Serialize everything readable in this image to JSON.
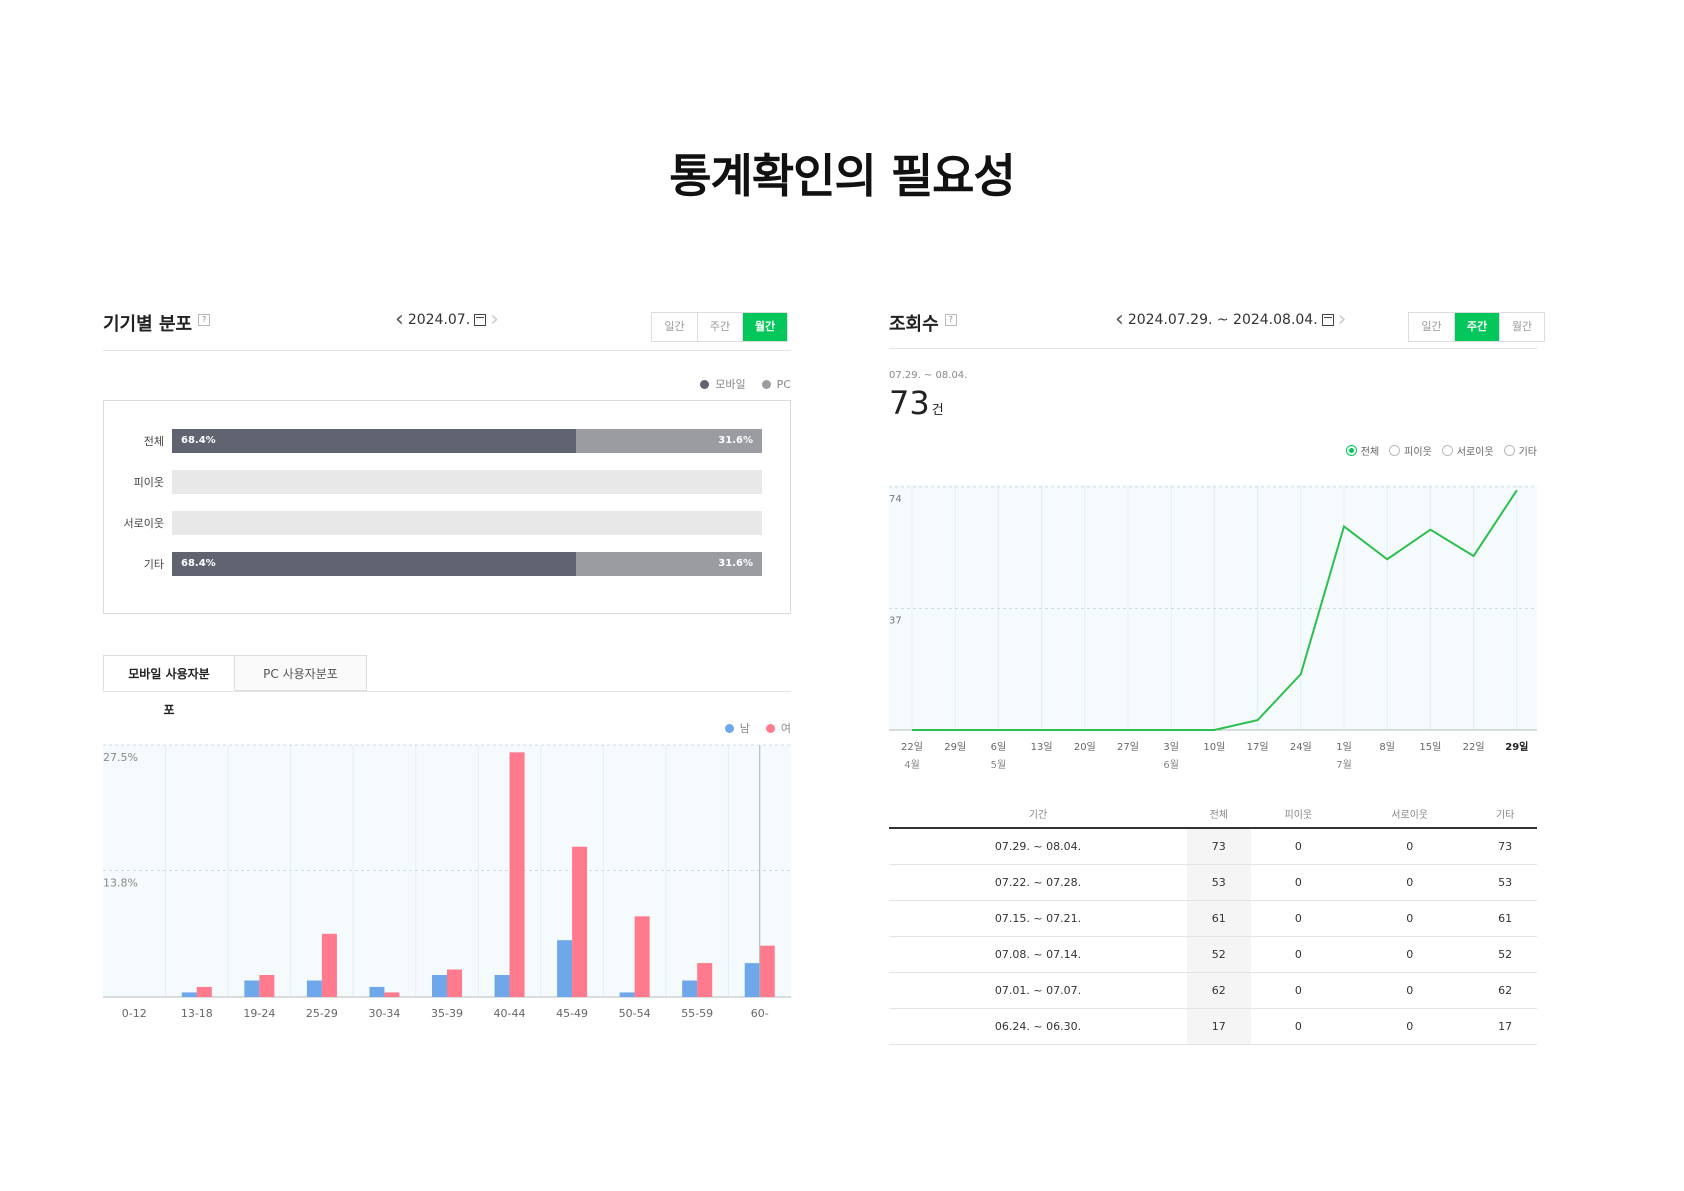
{
  "page_title": "통계확인의 필요성",
  "left": {
    "title": "기기별 분포",
    "help": "?",
    "date": "2024.07.",
    "periods": [
      {
        "label": "일간",
        "active": false
      },
      {
        "label": "주간",
        "active": false
      },
      {
        "label": "월간",
        "active": true
      }
    ],
    "legend": [
      {
        "label": "모바일",
        "color": "#606470"
      },
      {
        "label": "PC",
        "color": "#9a9ca1"
      }
    ],
    "tabs": [
      {
        "label": "모바일 사용자분포",
        "active": true
      },
      {
        "label": "PC 사용자분포",
        "active": false
      }
    ],
    "gender_legend": [
      {
        "label": "남",
        "color": "#6ea8ea"
      },
      {
        "label": "여",
        "color": "#ff7a8c"
      }
    ]
  },
  "right": {
    "title": "조회수",
    "help": "?",
    "date": "2024.07.29. ~ 2024.08.04.",
    "periods": [
      {
        "label": "일간",
        "active": false
      },
      {
        "label": "주간",
        "active": true
      },
      {
        "label": "월간",
        "active": false
      }
    ],
    "kpi_period": "07.29. ~ 08.04.",
    "kpi_value": "73",
    "kpi_unit": "건",
    "filters": [
      {
        "label": "전체",
        "on": true
      },
      {
        "label": "피이웃",
        "on": false
      },
      {
        "label": "서로이웃",
        "on": false
      },
      {
        "label": "기타",
        "on": false
      }
    ],
    "table": {
      "headers": [
        "기간",
        "전체",
        "피이웃",
        "서로이웃",
        "기타"
      ],
      "rows": [
        [
          "07.29. ~ 08.04.",
          "73",
          "0",
          "0",
          "73"
        ],
        [
          "07.22. ~ 07.28.",
          "53",
          "0",
          "0",
          "53"
        ],
        [
          "07.15. ~ 07.21.",
          "61",
          "0",
          "0",
          "61"
        ],
        [
          "07.08. ~ 07.14.",
          "52",
          "0",
          "0",
          "52"
        ],
        [
          "07.01. ~ 07.07.",
          "62",
          "0",
          "0",
          "62"
        ],
        [
          "06.24. ~ 06.30.",
          "17",
          "0",
          "0",
          "17"
        ]
      ]
    }
  },
  "chart_data": [
    {
      "type": "bar",
      "orientation": "horizontal-stacked",
      "categories": [
        "전체",
        "피이웃",
        "서로이웃",
        "기타"
      ],
      "series": [
        {
          "name": "모바일",
          "values": [
            68.4,
            null,
            null,
            68.4
          ],
          "labels": [
            "68.4%",
            "",
            "",
            "68.4%"
          ]
        },
        {
          "name": "PC",
          "values": [
            31.6,
            null,
            null,
            31.6
          ],
          "labels": [
            "31.6%",
            "",
            "",
            "31.6%"
          ]
        }
      ],
      "xlim": [
        0,
        100
      ]
    },
    {
      "type": "bar",
      "categories": [
        "0-12",
        "13-18",
        "19-24",
        "25-29",
        "30-34",
        "35-39",
        "40-44",
        "45-49",
        "50-54",
        "55-59",
        "60-"
      ],
      "series": [
        {
          "name": "남",
          "values": [
            0,
            0.5,
            1.8,
            1.8,
            1.1,
            2.4,
            2.4,
            6.2,
            0.5,
            1.8,
            3.7
          ]
        },
        {
          "name": "여",
          "values": [
            0,
            1.1,
            2.4,
            6.9,
            0.5,
            3.0,
            26.7,
            16.4,
            8.8,
            3.7,
            5.6
          ]
        }
      ],
      "ylim": [
        0,
        27.5
      ],
      "y_ticks": [
        "27.5%",
        "13.8%"
      ],
      "y_tick_values": [
        27.5,
        13.8
      ],
      "grid": true,
      "legend": "top-right"
    },
    {
      "type": "line",
      "x": [
        "22일",
        "29일",
        "6일",
        "13일",
        "20일",
        "27일",
        "3일",
        "10일",
        "17일",
        "24일",
        "1일",
        "8일",
        "15일",
        "22일",
        "29일"
      ],
      "x_sublabels": [
        "4월",
        "",
        "5월",
        "",
        "",
        "",
        "6월",
        "",
        "",
        "",
        "7월",
        "",
        "",
        "",
        ""
      ],
      "series": [
        {
          "name": "전체",
          "values": [
            0,
            0,
            0,
            0,
            0,
            0,
            0,
            0,
            3,
            17,
            62,
            52,
            61,
            53,
            73
          ]
        }
      ],
      "y_ticks": [
        "74",
        "37"
      ],
      "y_tick_values": [
        74,
        37
      ],
      "ylim": [
        0,
        74
      ],
      "grid": true,
      "color": "#2dbf4e"
    }
  ]
}
